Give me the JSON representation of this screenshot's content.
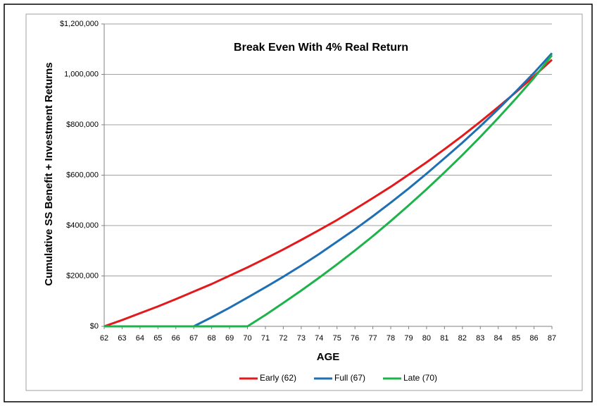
{
  "chart_data": {
    "type": "line",
    "title": "Break Even With 4% Real Return",
    "x_label": "AGE",
    "y_label": "Cumulative SS Benefit + Investment Returns",
    "x": [
      62,
      63,
      64,
      65,
      66,
      67,
      68,
      69,
      70,
      71,
      72,
      73,
      74,
      75,
      76,
      77,
      78,
      79,
      80,
      81,
      82,
      83,
      84,
      85,
      86,
      87
    ],
    "xlim": [
      62,
      87
    ],
    "xticks": [
      62,
      63,
      64,
      65,
      66,
      67,
      68,
      69,
      70,
      71,
      72,
      73,
      74,
      75,
      76,
      77,
      78,
      79,
      80,
      81,
      82,
      83,
      84,
      85,
      86,
      87
    ],
    "ylim": [
      0,
      1200000
    ],
    "yticks": [
      {
        "value": 0,
        "label": "$0"
      },
      {
        "value": 200000,
        "label": "$200,000"
      },
      {
        "value": 400000,
        "label": "$400,000"
      },
      {
        "value": 600000,
        "label": "$600,000"
      },
      {
        "value": 800000,
        "label": "$800,000"
      },
      {
        "value": 1000000,
        "label": "1,000,000"
      },
      {
        "value": 1200000,
        "label": "$1,200,000"
      }
    ],
    "grid": true,
    "legend": "bottom",
    "series": [
      {
        "name": "Early (62)",
        "color": "#e31a1c",
        "values": [
          0,
          25000,
          52000,
          79000,
          108000,
          138000,
          168000,
          201000,
          234000,
          269000,
          305000,
          343000,
          382000,
          422000,
          465000,
          509000,
          554000,
          602000,
          651000,
          703000,
          756000,
          812000,
          870000,
          930000,
          993000,
          1058000
        ]
      },
      {
        "name": "Full (67)",
        "color": "#1f6fb4",
        "values": [
          0,
          0,
          0,
          0,
          0,
          0,
          36000,
          74000,
          114000,
          155000,
          197000,
          241000,
          287000,
          336000,
          385000,
          437000,
          491000,
          547000,
          606000,
          667000,
          729000,
          794000,
          862000,
          933000,
          1006000,
          1084000
        ]
      },
      {
        "name": "Late (70)",
        "color": "#1db34a",
        "values": [
          0,
          0,
          0,
          0,
          0,
          0,
          0,
          0,
          0,
          45000,
          93000,
          142000,
          193000,
          246000,
          301000,
          358000,
          418000,
          480000,
          544000,
          611000,
          680000,
          752000,
          827000,
          905000,
          986000,
          1076000
        ]
      }
    ]
  }
}
